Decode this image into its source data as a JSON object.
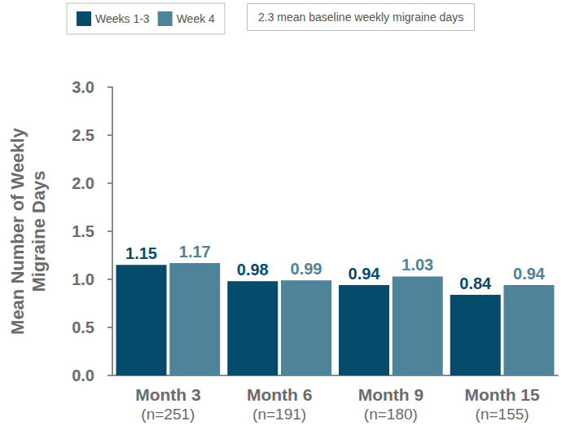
{
  "chart_data": {
    "type": "bar",
    "annotation": "2.3 mean baseline weekly migraine days",
    "y_label": "Mean Number of Weekly\nMigraine Days",
    "categories": [
      "Month 3\n(n=251)",
      "Month 6\n(n=191)",
      "Month 9\n(n=180)",
      "Month 15\n(n=155)"
    ],
    "series": [
      {
        "name": "Weeks 1-3",
        "color": "#054b6b",
        "values": [
          1.15,
          0.98,
          0.94,
          0.84
        ]
      },
      {
        "name": "Week 4",
        "color": "#4f8399",
        "values": [
          1.17,
          0.99,
          1.03,
          0.94
        ]
      }
    ],
    "ylim": [
      0,
      3
    ],
    "yticks": [
      {
        "value": 0,
        "label": "0.0"
      },
      {
        "value": 0.5,
        "label": "0.5"
      },
      {
        "value": 1,
        "label": "1.0"
      },
      {
        "value": 1.5,
        "label": "1.5"
      },
      {
        "value": 2,
        "label": "2.0"
      },
      {
        "value": 2.5,
        "label": "2.5"
      },
      {
        "value": 3,
        "label": "3.0"
      }
    ],
    "legend": "top-left",
    "grid": false,
    "data_labels": true
  }
}
